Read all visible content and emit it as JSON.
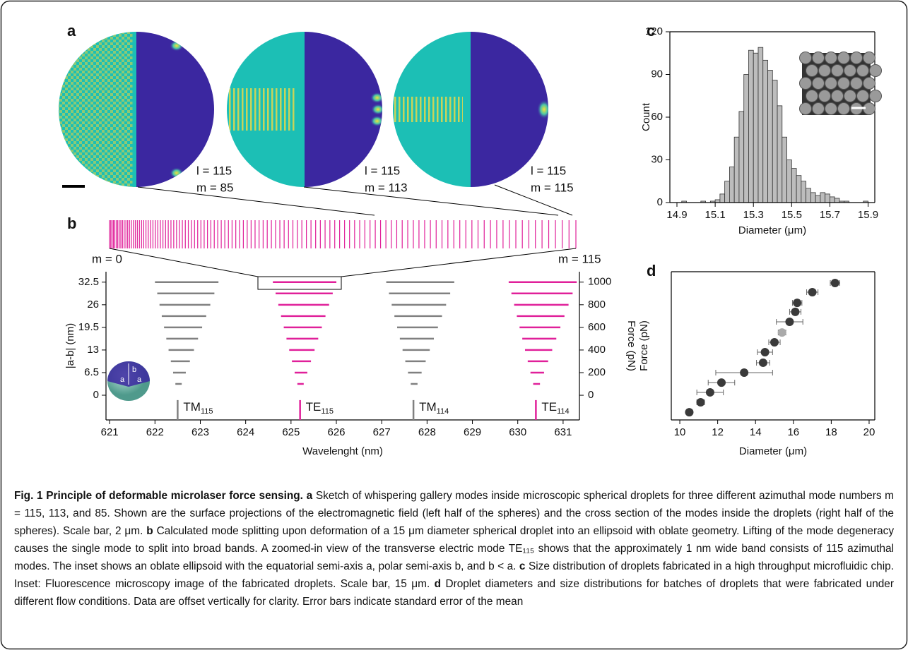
{
  "panel_labels": [
    "a",
    "b",
    "c",
    "d"
  ],
  "spheres": [
    {
      "l": "l = 115",
      "m": "m = 85"
    },
    {
      "l": "l = 115",
      "m": "m = 113"
    },
    {
      "l": "l = 115",
      "m": "m = 115"
    }
  ],
  "comb": {
    "start_label": "m = 0",
    "end_label": "m = 115"
  },
  "chart_data": [
    {
      "type": "band",
      "xlabel": "Wavelenght (nm)",
      "ylabel": "|a-b| (nm)",
      "y2label": "Force (pN)",
      "xlim": [
        620.92,
        631.36
      ],
      "xticks": [
        621,
        622,
        623,
        624,
        625,
        626,
        627,
        628,
        629,
        630,
        631
      ],
      "ylim": [
        -7.1,
        35.5
      ],
      "yticks": [
        0,
        6.5,
        13,
        19.5,
        26,
        32.5
      ],
      "y2lim": [
        -218,
        1092
      ],
      "y2ticks": [
        0,
        200,
        400,
        600,
        800,
        1000
      ],
      "levels": [
        3.25,
        6.5,
        9.75,
        13,
        16.25,
        19.5,
        22.75,
        26,
        29.25,
        32.5
      ],
      "inset_labels": [
        "b",
        "a",
        "a"
      ],
      "series": [
        {
          "name": "TM",
          "subscript": "115",
          "color": "#808080",
          "base": 622.5,
          "start": [
            622.45,
            622.4,
            622.35,
            622.3,
            622.25,
            622.2,
            622.15,
            622.1,
            622.05,
            622.0
          ],
          "end": [
            622.59,
            622.68,
            622.77,
            622.86,
            622.95,
            623.04,
            623.13,
            623.22,
            623.31,
            623.4
          ]
        },
        {
          "name": "TE",
          "subscript": "115",
          "color": "#e0209a",
          "base": 625.2,
          "start": [
            625.14,
            625.08,
            625.02,
            624.96,
            624.9,
            624.84,
            624.78,
            624.72,
            624.66,
            624.6
          ],
          "end": [
            625.28,
            625.36,
            625.44,
            625.52,
            625.6,
            625.68,
            625.76,
            625.84,
            625.92,
            626.0
          ]
        },
        {
          "name": "TM",
          "subscript": "114",
          "color": "#808080",
          "base": 627.7,
          "start": [
            627.64,
            627.58,
            627.52,
            627.46,
            627.4,
            627.34,
            627.28,
            627.22,
            627.16,
            627.1
          ],
          "end": [
            627.79,
            627.88,
            627.97,
            628.06,
            628.15,
            628.24,
            628.33,
            628.42,
            628.51,
            628.6
          ]
        },
        {
          "name": "TE",
          "subscript": "114",
          "color": "#e0209a",
          "base": 630.4,
          "start": [
            630.34,
            630.28,
            630.22,
            630.16,
            630.1,
            630.04,
            629.98,
            629.92,
            629.86,
            629.8
          ],
          "end": [
            630.49,
            630.58,
            630.67,
            630.76,
            630.85,
            630.94,
            631.03,
            631.12,
            631.21,
            631.3
          ]
        }
      ]
    },
    {
      "type": "histogram",
      "xlabel": "Diameter (μm)",
      "ylabel": "Count",
      "color": "#bdbdbd",
      "xlim": [
        14.863,
        15.935
      ],
      "xticks": [
        14.9,
        15.1,
        15.3,
        15.5,
        15.7,
        15.9
      ],
      "ylim": [
        0,
        120
      ],
      "yticks": [
        0,
        30,
        60,
        90,
        120
      ],
      "bins": [
        14.9,
        14.925,
        14.95,
        14.975,
        15.0,
        15.025,
        15.05,
        15.075,
        15.1,
        15.125,
        15.15,
        15.175,
        15.2,
        15.225,
        15.25,
        15.275,
        15.3,
        15.325,
        15.35,
        15.375,
        15.4,
        15.425,
        15.45,
        15.475,
        15.5,
        15.525,
        15.55,
        15.575,
        15.6,
        15.625,
        15.65,
        15.675,
        15.7,
        15.725,
        15.75,
        15.775,
        15.8,
        15.825,
        15.85,
        15.875,
        15.9
      ],
      "values": [
        0,
        1,
        0,
        0,
        0,
        1,
        0,
        1,
        2,
        6,
        15,
        25,
        46,
        64,
        90,
        107,
        105,
        109,
        100,
        93,
        86,
        68,
        46,
        30,
        24,
        19,
        15,
        10,
        7,
        5,
        7,
        6,
        4,
        3,
        1,
        1,
        0,
        0,
        0,
        1
      ]
    },
    {
      "type": "scatter",
      "xlabel": "Diameter (μm)",
      "ylabel": "Force (pN)",
      "xlim": [
        9.55,
        20.3
      ],
      "xticks": [
        10,
        12,
        14,
        16,
        18,
        20
      ],
      "ylim": [
        0,
        100
      ],
      "x": [
        10.5,
        11.1,
        11.6,
        12.2,
        13.4,
        14.4,
        14.5,
        15.0,
        15.4,
        15.8,
        16.1,
        16.2,
        17.0,
        18.2
      ],
      "xerr": [
        0.15,
        0.2,
        0.7,
        0.7,
        1.5,
        0.35,
        0.4,
        0.3,
        0.2,
        0.7,
        0.3,
        0.25,
        0.3,
        0.25
      ],
      "values": [
        5.2,
        11.9,
        18.6,
        25.2,
        31.9,
        38.6,
        45.7,
        52.4,
        59.0,
        66.2,
        72.9,
        79.0,
        86.2,
        92.4
      ],
      "colors": [
        "#3a3a3a",
        "#3a3a3a",
        "#3a3a3a",
        "#3a3a3a",
        "#3a3a3a",
        "#3a3a3a",
        "#3a3a3a",
        "#3a3a3a",
        "#aaaaaa",
        "#3a3a3a",
        "#3a3a3a",
        "#3a3a3a",
        "#3a3a3a",
        "#3a3a3a"
      ]
    }
  ],
  "caption": {
    "title": "Fig. 1 Principle of deformable microlaser force sensing.",
    "parts": [
      {
        "label": "a",
        "text": "Sketch of whispering gallery modes inside microscopic spherical droplets for three different azimuthal mode numbers m = 115, 113, and 85. Shown are the surface projections of the electromagnetic field (left half of the spheres) and the cross section of the modes inside the droplets (right half of the spheres). Scale bar, 2 μm."
      },
      {
        "label": "b",
        "text": "Calculated mode splitting upon deformation of a 15 μm diameter spherical droplet into an ellipsoid with oblate geometry. Lifting of the mode degeneracy causes the single mode to split into broad bands. A zoomed-in view of the transverse electric mode TE₁₁₅ shows that the approximately 1 nm wide band consists of 115 azimuthal modes. The inset shows an oblate ellipsoid with the equatorial semi-axis a, polar semi-axis b, and b < a."
      },
      {
        "label": "c",
        "text": "Size distribution of droplets fabricated in a high throughput microfluidic chip. Inset: Fluorescence microscopy image of the fabricated droplets. Scale bar, 15 μm."
      },
      {
        "label": "d",
        "text": "Droplet diameters and size distributions for batches of droplets that were fabricated under different flow conditions. Data are offset vertically for clarity. Error bars indicate standard error of the mean"
      }
    ]
  }
}
